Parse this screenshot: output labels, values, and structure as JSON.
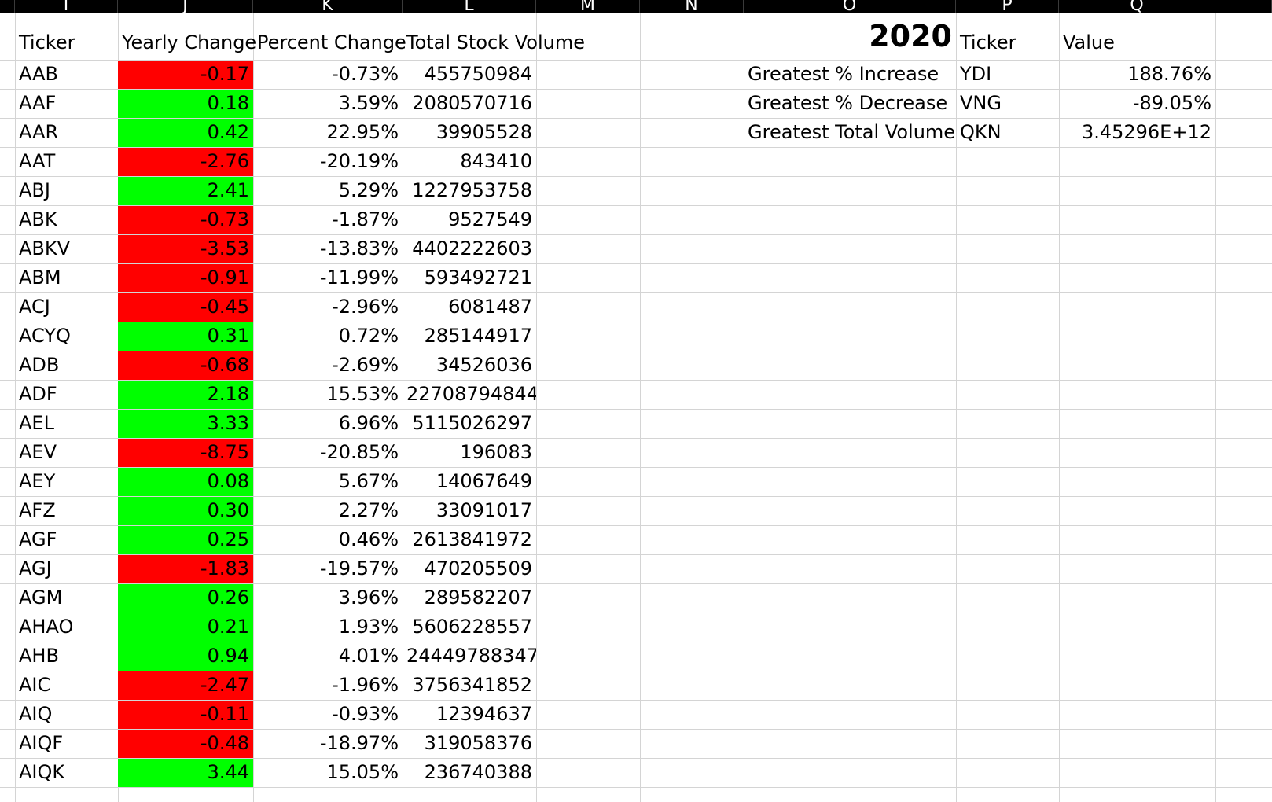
{
  "column_headers": [
    "I",
    "J",
    "K",
    "L",
    "M",
    "N",
    "O",
    "P",
    "Q"
  ],
  "table": {
    "headers": {
      "ticker": "Ticker",
      "yearly_change": "Yearly Change",
      "percent_change": "Percent Change",
      "total_volume": "Total Stock Volume"
    },
    "rows": [
      {
        "ticker": "AAB",
        "yearly_change": "-0.17",
        "percent_change": "-0.73%",
        "total_volume": "455750984",
        "sign": "neg"
      },
      {
        "ticker": "AAF",
        "yearly_change": "0.18",
        "percent_change": "3.59%",
        "total_volume": "2080570716",
        "sign": "pos"
      },
      {
        "ticker": "AAR",
        "yearly_change": "0.42",
        "percent_change": "22.95%",
        "total_volume": "39905528",
        "sign": "pos"
      },
      {
        "ticker": "AAT",
        "yearly_change": "-2.76",
        "percent_change": "-20.19%",
        "total_volume": "843410",
        "sign": "neg"
      },
      {
        "ticker": "ABJ",
        "yearly_change": "2.41",
        "percent_change": "5.29%",
        "total_volume": "1227953758",
        "sign": "pos"
      },
      {
        "ticker": "ABK",
        "yearly_change": "-0.73",
        "percent_change": "-1.87%",
        "total_volume": "9527549",
        "sign": "neg"
      },
      {
        "ticker": "ABKV",
        "yearly_change": "-3.53",
        "percent_change": "-13.83%",
        "total_volume": "4402222603",
        "sign": "neg"
      },
      {
        "ticker": "ABM",
        "yearly_change": "-0.91",
        "percent_change": "-11.99%",
        "total_volume": "593492721",
        "sign": "neg"
      },
      {
        "ticker": "ACJ",
        "yearly_change": "-0.45",
        "percent_change": "-2.96%",
        "total_volume": "6081487",
        "sign": "neg"
      },
      {
        "ticker": "ACYQ",
        "yearly_change": "0.31",
        "percent_change": "0.72%",
        "total_volume": "285144917",
        "sign": "pos"
      },
      {
        "ticker": "ADB",
        "yearly_change": "-0.68",
        "percent_change": "-2.69%",
        "total_volume": "34526036",
        "sign": "neg"
      },
      {
        "ticker": "ADF",
        "yearly_change": "2.18",
        "percent_change": "15.53%",
        "total_volume": "22708794844",
        "sign": "pos"
      },
      {
        "ticker": "AEL",
        "yearly_change": "3.33",
        "percent_change": "6.96%",
        "total_volume": "5115026297",
        "sign": "pos"
      },
      {
        "ticker": "AEV",
        "yearly_change": "-8.75",
        "percent_change": "-20.85%",
        "total_volume": "196083",
        "sign": "neg"
      },
      {
        "ticker": "AEY",
        "yearly_change": "0.08",
        "percent_change": "5.67%",
        "total_volume": "14067649",
        "sign": "pos"
      },
      {
        "ticker": "AFZ",
        "yearly_change": "0.30",
        "percent_change": "2.27%",
        "total_volume": "33091017",
        "sign": "pos"
      },
      {
        "ticker": "AGF",
        "yearly_change": "0.25",
        "percent_change": "0.46%",
        "total_volume": "2613841972",
        "sign": "pos"
      },
      {
        "ticker": "AGJ",
        "yearly_change": "-1.83",
        "percent_change": "-19.57%",
        "total_volume": "470205509",
        "sign": "neg"
      },
      {
        "ticker": "AGM",
        "yearly_change": "0.26",
        "percent_change": "3.96%",
        "total_volume": "289582207",
        "sign": "pos"
      },
      {
        "ticker": "AHAO",
        "yearly_change": "0.21",
        "percent_change": "1.93%",
        "total_volume": "5606228557",
        "sign": "pos"
      },
      {
        "ticker": "AHB",
        "yearly_change": "0.94",
        "percent_change": "4.01%",
        "total_volume": "24449788347",
        "sign": "pos"
      },
      {
        "ticker": "AIC",
        "yearly_change": "-2.47",
        "percent_change": "-1.96%",
        "total_volume": "3756341852",
        "sign": "neg"
      },
      {
        "ticker": "AIQ",
        "yearly_change": "-0.11",
        "percent_change": "-0.93%",
        "total_volume": "12394637",
        "sign": "neg"
      },
      {
        "ticker": "AIQF",
        "yearly_change": "-0.48",
        "percent_change": "-18.97%",
        "total_volume": "319058376",
        "sign": "neg"
      },
      {
        "ticker": "AIQK",
        "yearly_change": "3.44",
        "percent_change": "15.05%",
        "total_volume": "236740388",
        "sign": "pos"
      }
    ]
  },
  "summary": {
    "year": "2020",
    "ticker_header": "Ticker",
    "value_header": "Value",
    "rows": [
      {
        "label": "Greatest % Increase",
        "ticker": "YDI",
        "value": "188.76%"
      },
      {
        "label": "Greatest % Decrease",
        "ticker": "VNG",
        "value": "-89.05%"
      },
      {
        "label": "Greatest Total Volume",
        "ticker": "QKN",
        "value": "3.45296E+12"
      }
    ]
  },
  "colors": {
    "negative_fill": "#ff0000",
    "positive_fill": "#00ff00",
    "gridline": "#d4d4d4",
    "header_bar": "#000000"
  }
}
